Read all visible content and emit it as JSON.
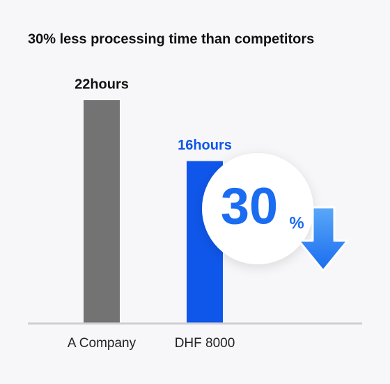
{
  "chart_data": {
    "type": "bar",
    "title": "30% less processing time than competitors",
    "categories": [
      "A Company",
      "DHF 8000"
    ],
    "values": [
      22,
      16
    ],
    "value_labels": [
      "22hours",
      "16hours"
    ],
    "colors": [
      "#737373",
      "#0f56ea"
    ],
    "label_colors": [
      "#111111",
      "#0f56ea"
    ],
    "ylim": [
      0,
      22
    ],
    "annotation": {
      "number": "30",
      "unit": "%"
    }
  }
}
